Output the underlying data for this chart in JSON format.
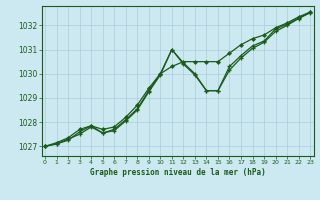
{
  "title": "Graphe pression niveau de la mer (hPa)",
  "bg_color": "#cce8f0",
  "grid_color": "#aaccd8",
  "line_color": "#1a5c1a",
  "x_ticks": [
    0,
    1,
    2,
    3,
    4,
    5,
    6,
    7,
    8,
    9,
    10,
    11,
    12,
    13,
    14,
    15,
    16,
    17,
    18,
    19,
    20,
    21,
    22,
    23
  ],
  "ylim": [
    1026.6,
    1032.8
  ],
  "yticks": [
    1027,
    1028,
    1029,
    1030,
    1031,
    1032
  ],
  "hours": [
    0,
    1,
    2,
    3,
    4,
    5,
    6,
    7,
    8,
    9,
    10,
    11,
    12,
    13,
    14,
    15,
    16,
    17,
    18,
    19,
    20,
    21,
    22,
    23
  ],
  "line_zigzag": [
    1027.0,
    1027.1,
    1027.3,
    1027.5,
    1027.8,
    1027.55,
    1027.7,
    1028.1,
    1028.55,
    1029.3,
    1030.0,
    1031.0,
    1030.45,
    1030.0,
    1029.3,
    1029.3,
    1030.3,
    1030.75,
    1031.15,
    1031.35,
    1031.85,
    1032.05,
    1032.3,
    1032.55
  ],
  "line_mid": [
    1027.0,
    1027.1,
    1027.25,
    1027.6,
    1027.85,
    1027.55,
    1027.65,
    1028.05,
    1028.5,
    1029.25,
    1029.95,
    1031.0,
    1030.4,
    1029.95,
    1029.3,
    1029.3,
    1030.15,
    1030.65,
    1031.05,
    1031.3,
    1031.75,
    1032.0,
    1032.28,
    1032.52
  ],
  "line_smooth": [
    1027.0,
    1027.15,
    1027.35,
    1027.7,
    1027.85,
    1027.7,
    1027.8,
    1028.2,
    1028.7,
    1029.4,
    1030.0,
    1030.3,
    1030.5,
    1030.5,
    1030.5,
    1030.5,
    1030.85,
    1031.2,
    1031.45,
    1031.6,
    1031.9,
    1032.1,
    1032.35,
    1032.55
  ]
}
